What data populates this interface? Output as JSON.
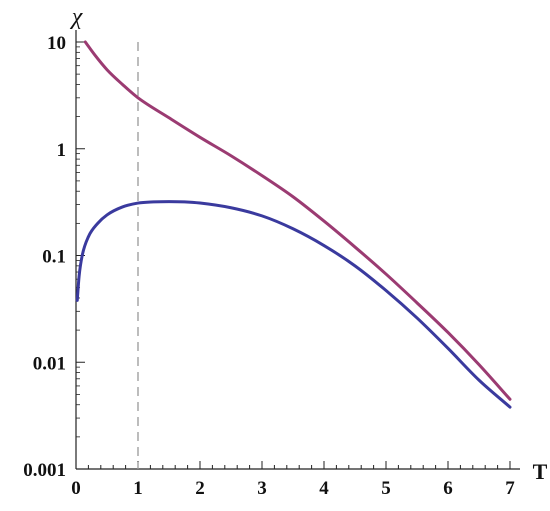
{
  "chart_data": {
    "type": "line",
    "xlabel": "T",
    "ylabel": "χ",
    "x_scale": "linear",
    "y_scale": "log",
    "xlim": [
      0,
      7
    ],
    "ylim": [
      0.001,
      10
    ],
    "x_ticks": [
      "0",
      "1",
      "2",
      "3",
      "4",
      "5",
      "6",
      "7"
    ],
    "y_ticks": [
      "0.001",
      "0.01",
      "0.1",
      "1",
      "10"
    ],
    "x_tick_values": [
      0,
      1,
      2,
      3,
      4,
      5,
      6,
      7
    ],
    "y_tick_values": [
      0.001,
      0.01,
      0.1,
      1,
      10
    ],
    "grid": false,
    "reference_lines": [
      {
        "orientation": "vertical",
        "x": 1,
        "style": "dashed",
        "color": "#999999"
      }
    ],
    "series": [
      {
        "color": "#9b3b72",
        "x": [
          0.15,
          0.3,
          0.5,
          0.75,
          1.0,
          1.5,
          2.0,
          2.5,
          3.0,
          3.5,
          4.0,
          4.5,
          5.0,
          5.5,
          6.0,
          6.5,
          7.0
        ],
        "y": [
          10,
          7.6,
          5.5,
          4.0,
          3.0,
          1.95,
          1.28,
          0.86,
          0.56,
          0.355,
          0.21,
          0.12,
          0.067,
          0.036,
          0.019,
          0.0095,
          0.0045
        ]
      },
      {
        "color": "#3a3a9e",
        "x": [
          0.02,
          0.05,
          0.1,
          0.2,
          0.35,
          0.5,
          0.75,
          1.0,
          1.25,
          1.5,
          1.75,
          2.0,
          2.5,
          3.0,
          3.5,
          4.0,
          4.5,
          5.0,
          5.5,
          6.0,
          6.5,
          7.0
        ],
        "y": [
          0.038,
          0.064,
          0.1,
          0.15,
          0.2,
          0.24,
          0.285,
          0.31,
          0.318,
          0.32,
          0.318,
          0.31,
          0.28,
          0.235,
          0.178,
          0.124,
          0.08,
          0.047,
          0.026,
          0.0135,
          0.0068,
          0.0038
        ]
      }
    ]
  }
}
